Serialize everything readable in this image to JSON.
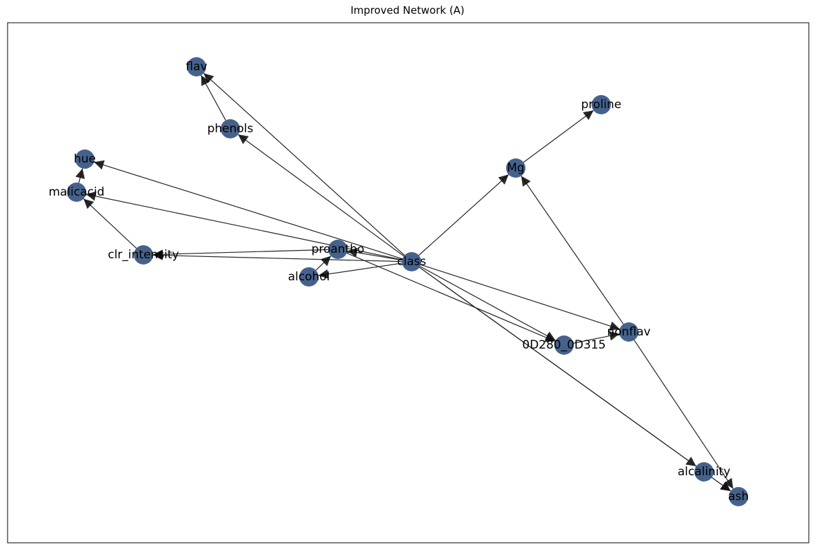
{
  "title": "Improved Network (A)",
  "colors": {
    "node_fill": "#3c5a86",
    "edge": "#222222",
    "frame": "#000000"
  },
  "nodes": [
    {
      "id": "flav",
      "label": "flav"
    },
    {
      "id": "proline",
      "label": "proline"
    },
    {
      "id": "phenols",
      "label": "phenols"
    },
    {
      "id": "hue",
      "label": "hue"
    },
    {
      "id": "Mg",
      "label": "Mg"
    },
    {
      "id": "malicacid",
      "label": "malicacid"
    },
    {
      "id": "clr_intensity",
      "label": "clr_intensity"
    },
    {
      "id": "proantho",
      "label": "proantho"
    },
    {
      "id": "class",
      "label": "class"
    },
    {
      "id": "alcohol",
      "label": "alcohol"
    },
    {
      "id": "nonflav",
      "label": "nonflav"
    },
    {
      "id": "OD280_OD315",
      "label": "0D280_0D315"
    },
    {
      "id": "alcalinity",
      "label": "alcalinity"
    },
    {
      "id": "ash",
      "label": "ash"
    }
  ],
  "edges": [
    {
      "from": "class",
      "to": "flav"
    },
    {
      "from": "class",
      "to": "phenols"
    },
    {
      "from": "class",
      "to": "hue"
    },
    {
      "from": "class",
      "to": "malicacid"
    },
    {
      "from": "class",
      "to": "clr_intensity"
    },
    {
      "from": "class",
      "to": "proantho"
    },
    {
      "from": "class",
      "to": "alcohol"
    },
    {
      "from": "class",
      "to": "Mg"
    },
    {
      "from": "class",
      "to": "nonflav"
    },
    {
      "from": "class",
      "to": "OD280_OD315"
    },
    {
      "from": "class",
      "to": "alcalinity"
    },
    {
      "from": "class",
      "to": "ash"
    },
    {
      "from": "phenols",
      "to": "flav"
    },
    {
      "from": "malicacid",
      "to": "hue"
    },
    {
      "from": "clr_intensity",
      "to": "malicacid"
    },
    {
      "from": "proantho",
      "to": "clr_intensity"
    },
    {
      "from": "proantho",
      "to": "OD280_OD315"
    },
    {
      "from": "alcohol",
      "to": "proantho"
    },
    {
      "from": "Mg",
      "to": "proline"
    },
    {
      "from": "nonflav",
      "to": "Mg"
    },
    {
      "from": "nonflav",
      "to": "ash"
    },
    {
      "from": "OD280_OD315",
      "to": "nonflav"
    },
    {
      "from": "alcalinity",
      "to": "ash"
    }
  ]
}
